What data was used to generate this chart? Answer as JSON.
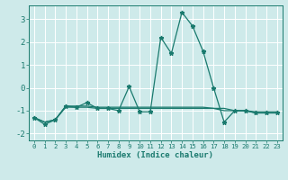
{
  "x": [
    0,
    1,
    2,
    3,
    4,
    5,
    6,
    7,
    8,
    9,
    10,
    11,
    12,
    13,
    14,
    15,
    16,
    17,
    18,
    19,
    20,
    21,
    22,
    23
  ],
  "y_main": [
    -1.3,
    -1.6,
    -1.4,
    -0.8,
    -0.85,
    -0.65,
    -0.9,
    -0.9,
    -1.0,
    0.05,
    -1.05,
    -1.05,
    2.2,
    1.5,
    3.3,
    2.7,
    1.6,
    0.0,
    -1.5,
    -1.0,
    -1.0,
    -1.1,
    -1.1,
    -1.1
  ],
  "y_flat1": [
    -1.3,
    -1.5,
    -1.4,
    -0.85,
    -0.85,
    -0.85,
    -0.9,
    -0.9,
    -0.9,
    -0.9,
    -0.9,
    -0.9,
    -0.9,
    -0.9,
    -0.9,
    -0.9,
    -0.9,
    -0.9,
    -0.9,
    -1.0,
    -1.0,
    -1.1,
    -1.1,
    -1.1
  ],
  "y_flat2": [
    -1.3,
    -1.5,
    -1.4,
    -0.8,
    -0.8,
    -0.8,
    -0.85,
    -0.85,
    -0.85,
    -0.85,
    -0.85,
    -0.85,
    -0.85,
    -0.85,
    -0.85,
    -0.85,
    -0.85,
    -0.9,
    -1.0,
    -1.0,
    -1.0,
    -1.05,
    -1.05,
    -1.05
  ],
  "line_color": "#1a7a6e",
  "bg_color": "#ceeaea",
  "grid_color": "#ffffff",
  "xlabel": "Humidex (Indice chaleur)",
  "xlim": [
    -0.5,
    23.5
  ],
  "ylim": [
    -2.3,
    3.6
  ],
  "yticks": [
    -2,
    -1,
    0,
    1,
    2,
    3
  ],
  "xticks": [
    0,
    1,
    2,
    3,
    4,
    5,
    6,
    7,
    8,
    9,
    10,
    11,
    12,
    13,
    14,
    15,
    16,
    17,
    18,
    19,
    20,
    21,
    22,
    23
  ],
  "marker": "*",
  "markersize": 3.5,
  "linewidth": 0.9
}
